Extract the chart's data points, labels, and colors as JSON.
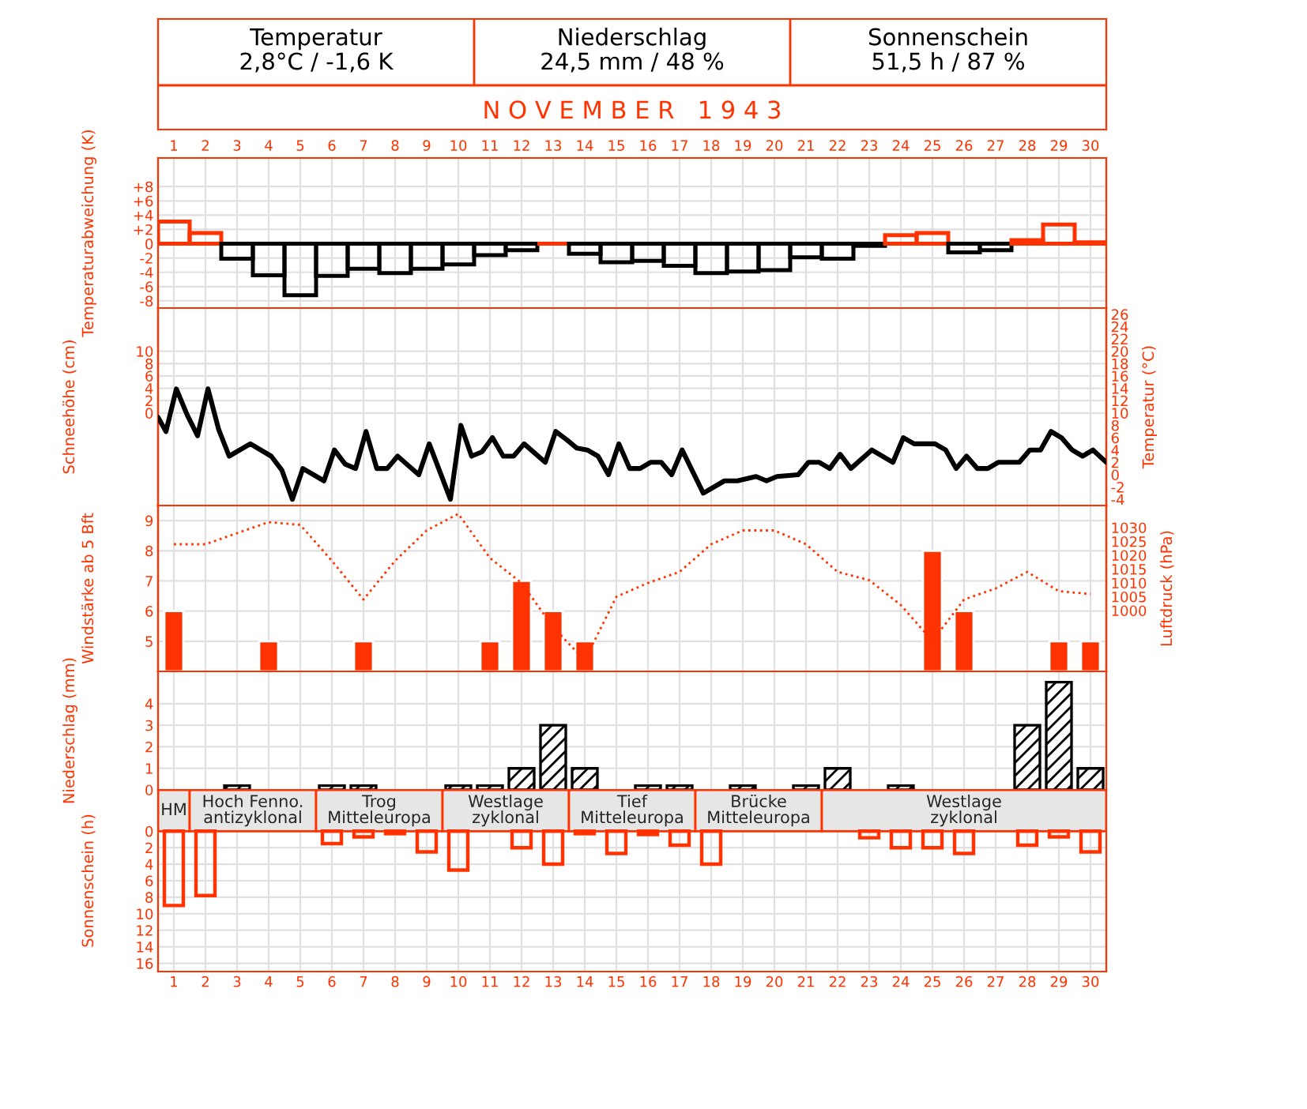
{
  "chart_data": [
    {
      "type": "other",
      "title": "N O V E M B E R   1 9 4 3",
      "annotations": [
        "Temperatur",
        "2,8°C / -1,6 K",
        "Niederschlag",
        "24,5 mm / 48 %",
        "Sonnenschein",
        "51,5 h / 87 %"
      ]
    },
    {
      "type": "bar",
      "ylabel": "Temperaturabweichung (K)",
      "x": [
        1,
        2,
        3,
        4,
        5,
        6,
        7,
        8,
        9,
        10,
        11,
        12,
        13,
        14,
        15,
        16,
        17,
        18,
        19,
        20,
        21,
        22,
        23,
        24,
        25,
        26,
        27,
        28,
        29,
        30
      ],
      "values": [
        3.1,
        1.5,
        -2.1,
        -4.4,
        -7.2,
        -4.5,
        -3.5,
        -4.1,
        -3.5,
        -2.9,
        -1.6,
        -0.9,
        0,
        -1.4,
        -2.6,
        -2.4,
        -3.1,
        -4.1,
        -3.9,
        -3.7,
        -1.9,
        -2.1,
        -0.3,
        1.2,
        1.5,
        -1.2,
        -0.9,
        0.5,
        2.7,
        0.2
      ],
      "colors": [
        "#ff3300",
        "#ff3300",
        "#000000",
        "#000000",
        "#000000",
        "#000000",
        "#000000",
        "#000000",
        "#000000",
        "#000000",
        "#000000",
        "#000000",
        "#ff3300",
        "#000000",
        "#000000",
        "#000000",
        "#000000",
        "#000000",
        "#000000",
        "#000000",
        "#000000",
        "#000000",
        "#000000",
        "#ff3300",
        "#ff3300",
        "#000000",
        "#000000",
        "#ff3300",
        "#ff3300",
        "#ff3300"
      ],
      "xlim": [
        0.5,
        30.5
      ],
      "xticks": [
        1,
        2,
        3,
        4,
        5,
        6,
        7,
        8,
        9,
        10,
        11,
        12,
        13,
        14,
        15,
        16,
        17,
        18,
        19,
        20,
        21,
        22,
        23,
        24,
        25,
        26,
        27,
        28,
        29,
        30
      ],
      "ylim": [
        -9,
        12
      ],
      "yticks": [
        {
          "value": 8,
          "label": "+8"
        },
        {
          "value": 6,
          "label": "+6"
        },
        {
          "value": 4,
          "label": "+4"
        },
        {
          "value": 2,
          "label": "+2"
        },
        0,
        -2,
        -4,
        -6,
        -8
      ],
      "grid": true
    },
    {
      "type": "line",
      "ylabel": "Schneehöhe (cm)",
      "y2label": "Temperatur (°C)",
      "series": [
        {
          "axis": "y2",
          "color": "#000000",
          "x": [
            0.5,
            0.75,
            1.08,
            1.42,
            1.75,
            2.08,
            2.42,
            2.75,
            3.42,
            4.08,
            4.42,
            4.75,
            5.08,
            5.75,
            6.08,
            6.42,
            6.75,
            7.08,
            7.42,
            7.75,
            8.08,
            8.75,
            9.08,
            9.75,
            10.08,
            10.42,
            10.75,
            11.08,
            11.42,
            11.75,
            12.08,
            12.75,
            13.08,
            13.42,
            13.75,
            14.08,
            14.42,
            14.75,
            15.08,
            15.42,
            15.75,
            16.08,
            16.42,
            16.75,
            17.08,
            17.75,
            18.42,
            18.83,
            19.42,
            19.75,
            20.08,
            20.75,
            21.08,
            21.42,
            21.75,
            22.08,
            22.42,
            23.08,
            23.75,
            24.08,
            24.42,
            25.08,
            25.42,
            25.75,
            26.08,
            26.42,
            26.75,
            27.08,
            27.75,
            28.08,
            28.42,
            28.75,
            29.08,
            29.42,
            29.75,
            30.08,
            30.5
          ],
          "values": [
            9.3,
            7.0,
            13.9,
            9.7,
            6.3,
            13.9,
            7.3,
            3.0,
            5.0,
            3.0,
            0.7,
            -4.0,
            1.0,
            -1.0,
            4.0,
            1.7,
            1.0,
            7.0,
            1.0,
            1.0,
            3.0,
            0.0,
            5.0,
            -4.0,
            8.0,
            3.0,
            3.7,
            6.0,
            3.0,
            3.0,
            5.0,
            2.0,
            7.0,
            5.7,
            4.3,
            4.0,
            3.0,
            0.0,
            5.0,
            1.0,
            1.0,
            2.0,
            2.0,
            0.0,
            4.0,
            -3.0,
            -1.0,
            -1.0,
            -0.3,
            -1.0,
            -0.3,
            0.0,
            2.0,
            2.0,
            1.0,
            3.3,
            1.0,
            4.0,
            2.0,
            6.0,
            5.0,
            5.0,
            4.0,
            1.0,
            3.0,
            1.0,
            1.0,
            2.0,
            2.0,
            4.0,
            4.0,
            7.0,
            6.0,
            4.0,
            3.0,
            4.0,
            2.0
          ]
        }
      ],
      "xlim": [
        0.5,
        30.5
      ],
      "xticks": [
        1,
        2,
        3,
        4,
        5,
        6,
        7,
        8,
        9,
        10,
        11,
        12,
        13,
        14,
        15,
        16,
        17,
        18,
        19,
        20,
        21,
        22,
        23,
        24,
        25,
        26,
        27,
        28,
        29,
        30
      ],
      "ylim": [
        -15,
        17
      ],
      "yticks": [
        0,
        2,
        4,
        6,
        8,
        10
      ],
      "y2lim": [
        -5,
        27
      ],
      "y2ticks": [
        -4,
        -2,
        0,
        2,
        4,
        6,
        8,
        10,
        12,
        14,
        16,
        18,
        20,
        22,
        24,
        26
      ],
      "tick_labels": "y",
      "grid": true
    },
    {
      "type": "bar",
      "ylabel": "Windstärke ab 5 Bft",
      "y2label": "Luftdruck (hPa)",
      "series": [
        {
          "type": "bar",
          "color": "#ff3300",
          "x": [
            1,
            4,
            7,
            11,
            12,
            13,
            14,
            25,
            26,
            29,
            30
          ],
          "values": [
            6,
            5,
            5,
            5,
            7,
            6,
            5,
            8,
            6,
            5,
            5
          ]
        },
        {
          "type": "line",
          "axis": "y2",
          "color": "#ff3300",
          "line_style": "dotted",
          "x": [
            1,
            2,
            3,
            4,
            5,
            6,
            7,
            8,
            9,
            10,
            11,
            12,
            13,
            14,
            15,
            16,
            17,
            18,
            19,
            20,
            21,
            22,
            23,
            24,
            25,
            26,
            27,
            28,
            29,
            30
          ],
          "values": [
            1024,
            1024,
            1028,
            1032,
            1031,
            1018,
            1004,
            1018,
            1029,
            1035,
            1019,
            1010,
            994,
            982,
            1005,
            1010,
            1014,
            1024,
            1029,
            1029,
            1024,
            1014,
            1011,
            1002,
            989,
            1004,
            1008,
            1014,
            1007,
            1006
          ]
        }
      ],
      "xlim": [
        0.5,
        30.5
      ],
      "xticks": [
        1,
        2,
        3,
        4,
        5,
        6,
        7,
        8,
        9,
        10,
        11,
        12,
        13,
        14,
        15,
        16,
        17,
        18,
        19,
        20,
        21,
        22,
        23,
        24,
        25,
        26,
        27,
        28,
        29,
        30
      ],
      "ylim": [
        4,
        9.5
      ],
      "yticks": [
        5,
        6,
        7,
        8,
        9
      ],
      "y2lim": [
        978,
        1038
      ],
      "y2ticks": [
        1000,
        1005,
        1010,
        1015,
        1020,
        1025,
        1030
      ],
      "tick_labels": "y",
      "grid": true
    },
    {
      "type": "bar",
      "ylabel": "Niederschlag (mm)",
      "x": [
        3,
        6,
        7,
        10,
        11,
        12,
        13,
        14,
        16,
        17,
        19,
        21,
        22,
        24,
        28,
        29,
        30
      ],
      "values": [
        0.2,
        0.2,
        0.2,
        0.2,
        0.2,
        1.0,
        3.0,
        1.0,
        0.2,
        0.2,
        0.2,
        0.2,
        1.0,
        0.2,
        3.0,
        5.0,
        1.0
      ],
      "color": "#000000",
      "xlim": [
        0.5,
        30.5
      ],
      "xticks": [
        1,
        2,
        3,
        4,
        5,
        6,
        7,
        8,
        9,
        10,
        11,
        12,
        13,
        14,
        15,
        16,
        17,
        18,
        19,
        20,
        21,
        22,
        23,
        24,
        25,
        26,
        27,
        28,
        29,
        30
      ],
      "ylim": [
        0,
        5.5
      ],
      "yticks": [
        0,
        1,
        2,
        3,
        4
      ],
      "tick_labels": "y",
      "grid": true
    },
    {
      "type": "bar",
      "ylabel": "Sonnenschein (h)",
      "x": [
        1,
        2,
        6,
        7,
        8,
        9,
        10,
        12,
        13,
        14,
        15,
        16,
        17,
        18,
        23,
        24,
        25,
        26,
        28,
        29,
        30
      ],
      "values": [
        9.0,
        7.8,
        1.5,
        0.7,
        0.3,
        2.5,
        4.7,
        2.0,
        4.0,
        0.3,
        2.7,
        0.4,
        1.7,
        4.0,
        0.8,
        2.0,
        2.0,
        2.7,
        1.7,
        0.7,
        2.5
      ],
      "color": "#ff3300",
      "xlim": [
        0.5,
        30.5
      ],
      "xticks": [
        1,
        2,
        3,
        4,
        5,
        6,
        7,
        8,
        9,
        10,
        11,
        12,
        13,
        14,
        15,
        16,
        17,
        18,
        19,
        20,
        21,
        22,
        23,
        24,
        25,
        26,
        27,
        28,
        29,
        30
      ],
      "ylim": [
        17,
        -5
      ],
      "yticks": [
        0,
        2,
        4,
        6,
        8,
        10,
        12,
        14,
        16
      ],
      "grid": true,
      "bands": [
        {
          "axis": "x",
          "from": 0.5,
          "to": 1.5,
          "label": "HM",
          "color": "#e6e6e6"
        },
        {
          "axis": "x",
          "from": 1.5,
          "to": 5.5,
          "label": "Hoch Fenno.\nantizyklonal",
          "color": "#e6e6e6"
        },
        {
          "axis": "x",
          "from": 5.5,
          "to": 9.5,
          "label": "Trog\nMitteleuropa",
          "color": "#e6e6e6"
        },
        {
          "axis": "x",
          "from": 9.5,
          "to": 13.5,
          "label": "Westlage\nzyklonal",
          "color": "#e6e6e6"
        },
        {
          "axis": "x",
          "from": 13.5,
          "to": 17.5,
          "label": "Tief\nMitteleuropa",
          "color": "#e6e6e6"
        },
        {
          "axis": "x",
          "from": 17.5,
          "to": 21.5,
          "label": "Brücke\nMitteleuropa",
          "color": "#e6e6e6"
        },
        {
          "axis": "x",
          "from": 21.5,
          "to": 30.5,
          "label": "Westlage\nzyklonal",
          "color": "#e6e6e6"
        }
      ]
    }
  ]
}
